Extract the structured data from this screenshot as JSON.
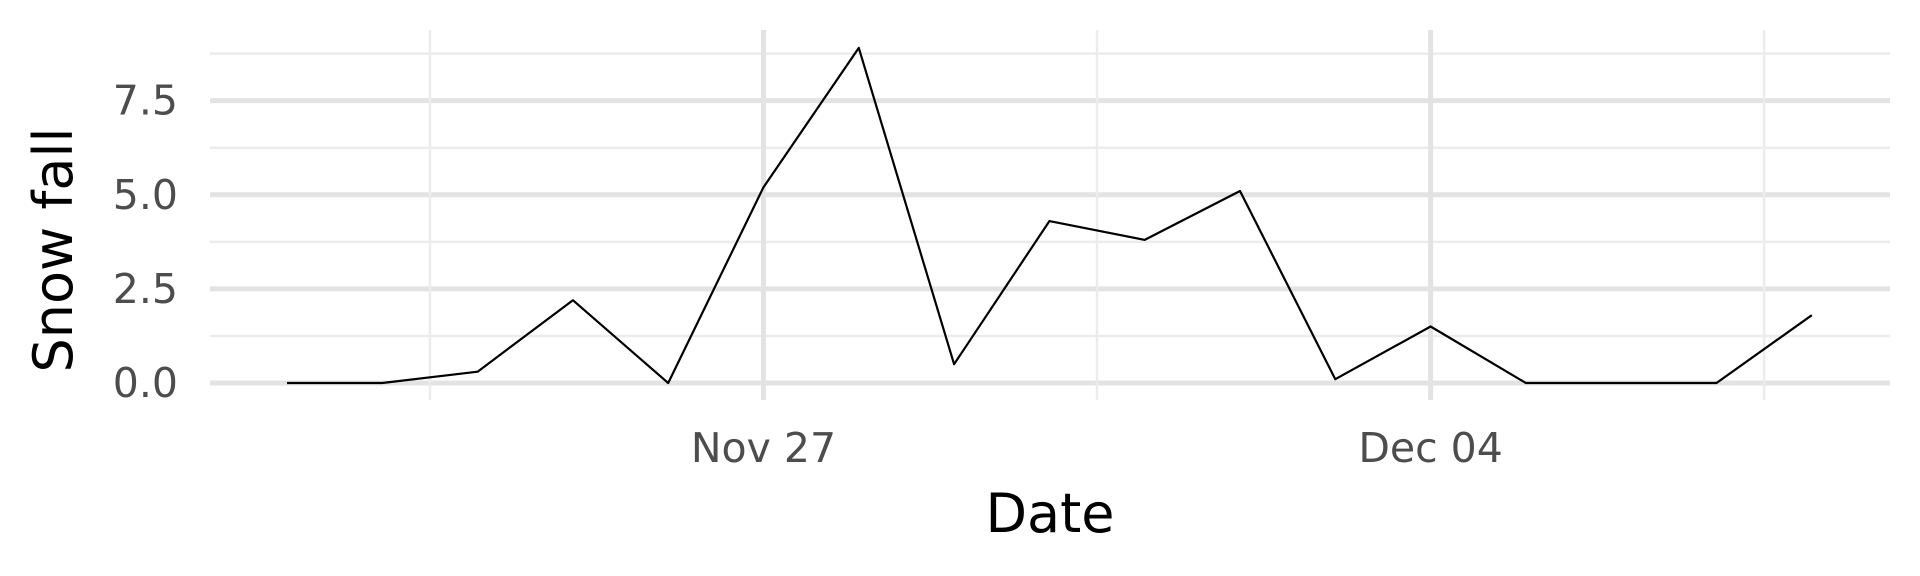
{
  "chart_data": {
    "type": "line",
    "xlabel": "Date",
    "ylabel": "Snow fall",
    "x": [
      "2023-11-22",
      "2023-11-23",
      "2023-11-24",
      "2023-11-25",
      "2023-11-26",
      "2023-11-27",
      "2023-11-28",
      "2023-11-29",
      "2023-11-30",
      "2023-12-01",
      "2023-12-02",
      "2023-12-03",
      "2023-12-04",
      "2023-12-05",
      "2023-12-06",
      "2023-12-07",
      "2023-12-08"
    ],
    "values": [
      0,
      0,
      0.3,
      2.2,
      0,
      5.2,
      8.9,
      0.5,
      4.3,
      3.8,
      5.1,
      0.1,
      1.5,
      0,
      0,
      0,
      1.8
    ],
    "ylim": [
      0,
      9
    ],
    "yticks": [
      0,
      2.5,
      5,
      7.5
    ],
    "ytick_labels": [
      "0.0",
      "2.5",
      "5.0",
      "7.5"
    ],
    "xticks": [
      "2023-11-27",
      "2023-12-04"
    ],
    "xtick_labels": [
      "Nov 27",
      "Dec 04"
    ],
    "grid": true,
    "line_color": "#000000",
    "grid_color": "#e3e3e3"
  }
}
